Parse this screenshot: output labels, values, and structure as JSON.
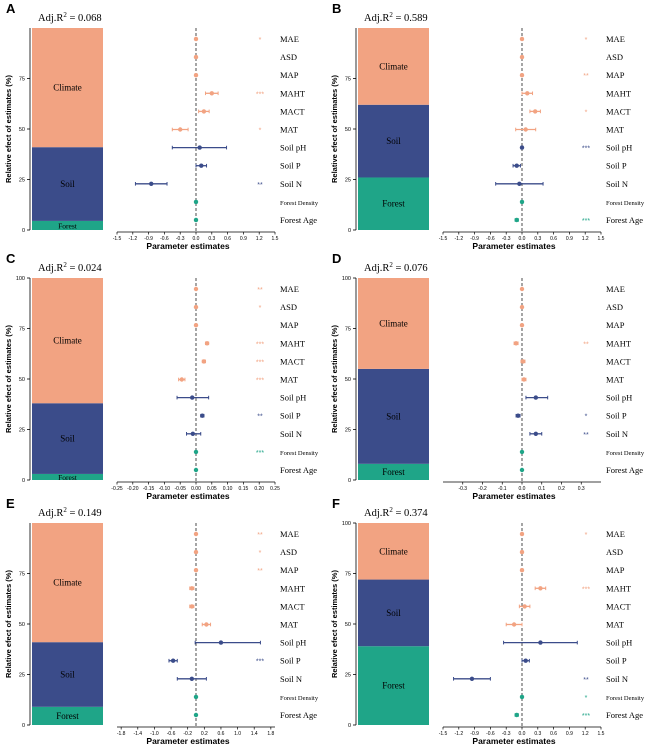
{
  "colors": {
    "climate": "#F2A382",
    "soil": "#3B4C8A",
    "forest": "#1FA588",
    "axis": "#000000"
  },
  "y_axis_label": "Relative efect of estimates (%)",
  "x_axis_label": "Parameter estimates",
  "variables": [
    "MAE",
    "ASD",
    "MAP",
    "MAHT",
    "MACT",
    "MAT",
    "Soil pH",
    "Soil P",
    "Soil N",
    "Forest Density",
    "Forest Age"
  ],
  "variable_groups": [
    "climate",
    "climate",
    "climate",
    "climate",
    "climate",
    "climate",
    "soil",
    "soil",
    "soil",
    "forest",
    "forest"
  ],
  "chart_data": [
    {
      "panel": "A",
      "type": "forest-plot",
      "r2_label": "Adj.R",
      "r2_value": "= 0.068",
      "stack": {
        "climate": 59,
        "soil": 36.5,
        "forest": 4.5
      },
      "stack_labels": {
        "climate": "Climate",
        "soil": "Soil",
        "forest": "Forest"
      },
      "stack_ticks": [
        "0",
        "25",
        "50",
        "75"
      ],
      "stack_tick_values": [
        0,
        25,
        50,
        75
      ],
      "xlim": [
        -1.5,
        1.5
      ],
      "xticks": [
        -1.5,
        -1.2,
        -0.9,
        -0.6,
        -0.3,
        0.0,
        0.3,
        0.6,
        0.9,
        1.2,
        1.5
      ],
      "xtick_labels": [
        "-1.5",
        "-1.2",
        "-0.9",
        "-0.6",
        "-0.3",
        "0.0",
        "0.3",
        "0.6",
        "0.9",
        "1.2",
        "1.5"
      ],
      "estimates": [
        0.0,
        0.0,
        0.0,
        0.3,
        0.15,
        -0.3,
        0.07,
        0.1,
        -0.85,
        0.0,
        0.0
      ],
      "lower": [
        -0.02,
        -0.02,
        -0.02,
        0.18,
        0.05,
        -0.45,
        -0.45,
        0.0,
        -1.15,
        -0.02,
        -0.02
      ],
      "upper": [
        0.02,
        0.02,
        0.02,
        0.42,
        0.25,
        -0.15,
        0.58,
        0.2,
        -0.55,
        0.02,
        0.02
      ],
      "significance": [
        "*",
        "",
        "",
        "***",
        "",
        "*",
        "",
        "",
        "**",
        "",
        ""
      ]
    },
    {
      "panel": "B",
      "type": "forest-plot",
      "r2_label": "Adj.R",
      "r2_value": "= 0.589",
      "stack": {
        "climate": 38,
        "soil": 36,
        "forest": 26
      },
      "stack_labels": {
        "climate": "Climate",
        "soil": "Soil",
        "forest": "Forest"
      },
      "stack_ticks": [
        "0",
        "25",
        "50",
        "75"
      ],
      "stack_tick_values": [
        0,
        25,
        50,
        75
      ],
      "xlim": [
        -1.5,
        1.5
      ],
      "xticks": [
        -1.5,
        -1.2,
        -0.9,
        -0.6,
        -0.3,
        0.0,
        0.3,
        0.6,
        0.9,
        1.2,
        1.5
      ],
      "xtick_labels": [
        "-1.5",
        "-1.2",
        "-0.9",
        "-0.6",
        "-0.3",
        "0.0",
        "0.3",
        "0.6",
        "0.9",
        "1.2",
        "1.5"
      ],
      "estimates": [
        0.0,
        0.0,
        0.0,
        0.1,
        0.25,
        0.07,
        0.0,
        -0.1,
        -0.05,
        0.0,
        -0.1
      ],
      "lower": [
        -0.02,
        -0.02,
        -0.02,
        0.0,
        0.15,
        -0.12,
        -0.02,
        -0.17,
        -0.5,
        -0.02,
        -0.13
      ],
      "upper": [
        0.02,
        0.02,
        0.02,
        0.2,
        0.35,
        0.26,
        0.02,
        -0.03,
        0.4,
        0.02,
        -0.07
      ],
      "significance": [
        "*",
        "",
        "**",
        "",
        "*",
        "",
        "***",
        "",
        "",
        "",
        "***"
      ]
    },
    {
      "panel": "C",
      "type": "forest-plot",
      "r2_label": "Adj.R",
      "r2_value": "= 0.024",
      "stack": {
        "climate": 62,
        "soil": 35,
        "forest": 3
      },
      "stack_labels": {
        "climate": "Climate",
        "soil": "Soil",
        "forest": "Forest"
      },
      "stack_ticks": [
        "0",
        "25",
        "50",
        "75",
        "100"
      ],
      "stack_tick_values": [
        0,
        25,
        50,
        75,
        100
      ],
      "xlim": [
        -0.25,
        0.25
      ],
      "xticks": [
        -0.25,
        -0.2,
        -0.15,
        -0.1,
        -0.05,
        0.0,
        0.05,
        0.1,
        0.15,
        0.2,
        0.25
      ],
      "xtick_labels": [
        "-0.25",
        "-0.20",
        "-0.15",
        "-0.10",
        "-0.05",
        "0.00",
        "0.05",
        "0.10",
        "0.15",
        "0.20",
        "0.25"
      ],
      "estimates": [
        0.0,
        0.0,
        0.0,
        0.035,
        0.025,
        -0.045,
        -0.012,
        0.02,
        -0.01,
        0.0,
        0.0
      ],
      "lower": [
        -0.002,
        -0.002,
        -0.002,
        0.03,
        0.02,
        -0.055,
        -0.06,
        0.015,
        -0.03,
        -0.002,
        -0.002
      ],
      "upper": [
        0.002,
        0.002,
        0.002,
        0.04,
        0.03,
        -0.035,
        0.04,
        0.025,
        0.015,
        0.002,
        0.002
      ],
      "significance": [
        "**",
        "*",
        "",
        "***",
        "***",
        "***",
        "",
        "**",
        "",
        "***",
        ""
      ]
    },
    {
      "panel": "D",
      "type": "forest-plot",
      "r2_label": "Adj.R",
      "r2_value": "= 0.076",
      "stack": {
        "climate": 45,
        "soil": 47,
        "forest": 8
      },
      "stack_labels": {
        "climate": "Climate",
        "soil": "Soil",
        "forest": "Forest"
      },
      "stack_ticks": [
        "0",
        "25",
        "50",
        "75",
        "100"
      ],
      "stack_tick_values": [
        0,
        25,
        50,
        75,
        100
      ],
      "xlim": [
        -0.4,
        0.4
      ],
      "xticks": [
        -0.3,
        -0.2,
        -0.1,
        0.0,
        0.1,
        0.2,
        0.3
      ],
      "xtick_labels": [
        "-0.3",
        "-0.2",
        "-0.1",
        "0.0",
        "0.1",
        "0.2",
        "0.3"
      ],
      "estimates": [
        0.0,
        0.0,
        0.0,
        -0.03,
        0.005,
        0.01,
        0.07,
        -0.02,
        0.07,
        0.0,
        0.0
      ],
      "lower": [
        -0.002,
        -0.002,
        -0.002,
        -0.04,
        -0.005,
        0.0,
        0.02,
        -0.03,
        0.04,
        -0.002,
        -0.002
      ],
      "upper": [
        0.002,
        0.002,
        0.002,
        -0.02,
        0.015,
        0.02,
        0.13,
        -0.01,
        0.1,
        0.002,
        0.002
      ],
      "significance": [
        "",
        "",
        "",
        "**",
        "",
        "",
        "",
        "*",
        "**",
        "",
        ""
      ]
    },
    {
      "panel": "E",
      "type": "forest-plot",
      "r2_label": "Adj.R",
      "r2_value": "= 0.149",
      "stack": {
        "climate": 59,
        "soil": 32,
        "forest": 9
      },
      "stack_labels": {
        "climate": "Climate",
        "soil": "Soil",
        "forest": "Forest"
      },
      "stack_ticks": [
        "0",
        "25",
        "50",
        "75"
      ],
      "stack_tick_values": [
        0,
        25,
        50,
        75
      ],
      "xlim": [
        -1.9,
        1.9
      ],
      "xticks": [
        -1.8,
        -1.4,
        -1.0,
        -0.6,
        -0.2,
        0.2,
        0.6,
        1.0,
        1.4,
        1.8
      ],
      "xtick_labels": [
        "-1.8",
        "-1.4",
        "-1.0",
        "-0.6",
        "-0.2",
        "0.2",
        "0.6",
        "1.0",
        "1.4",
        "1.8"
      ],
      "estimates": [
        0.0,
        0.0,
        0.0,
        -0.1,
        -0.1,
        0.25,
        0.6,
        -0.55,
        -0.1,
        0.0,
        0.0
      ],
      "lower": [
        -0.02,
        -0.02,
        -0.02,
        -0.15,
        -0.15,
        0.15,
        -0.02,
        -0.65,
        -0.45,
        -0.02,
        -0.02
      ],
      "upper": [
        0.02,
        0.02,
        0.02,
        -0.05,
        -0.05,
        0.35,
        1.55,
        -0.45,
        0.25,
        0.02,
        0.02
      ],
      "significance": [
        "**",
        "*",
        "**",
        "",
        "",
        "",
        "",
        "***",
        "",
        "",
        ""
      ]
    },
    {
      "panel": "F",
      "type": "forest-plot",
      "r2_label": "Adj.R",
      "r2_value": "= 0.374",
      "stack": {
        "climate": 28,
        "soil": 33,
        "forest": 39
      },
      "stack_labels": {
        "climate": "Climate",
        "soil": "Soil",
        "forest": "Forest"
      },
      "stack_ticks": [
        "0",
        "25",
        "50",
        "75",
        "100"
      ],
      "stack_tick_values": [
        0,
        25,
        50,
        75,
        100
      ],
      "xlim": [
        -1.5,
        1.5
      ],
      "xticks": [
        -1.5,
        -1.2,
        -0.9,
        -0.6,
        -0.3,
        0.0,
        0.3,
        0.6,
        0.9,
        1.2,
        1.5
      ],
      "xtick_labels": [
        "-1.5",
        "-1.2",
        "-0.9",
        "-0.6",
        "-0.3",
        "0.0",
        "0.3",
        "0.6",
        "0.9",
        "1.2",
        "1.5"
      ],
      "estimates": [
        0.0,
        0.0,
        0.0,
        0.35,
        0.05,
        -0.15,
        0.35,
        0.07,
        -0.95,
        0.0,
        -0.1
      ],
      "lower": [
        -0.02,
        -0.02,
        -0.02,
        0.25,
        -0.05,
        -0.3,
        -0.35,
        0.0,
        -1.3,
        -0.02,
        -0.13
      ],
      "upper": [
        0.02,
        0.02,
        0.02,
        0.45,
        0.15,
        0.0,
        1.05,
        0.14,
        -0.6,
        0.02,
        -0.07
      ],
      "significance": [
        "*",
        "",
        "",
        "***",
        "",
        "",
        "",
        "",
        "**",
        "*",
        "***"
      ]
    }
  ]
}
